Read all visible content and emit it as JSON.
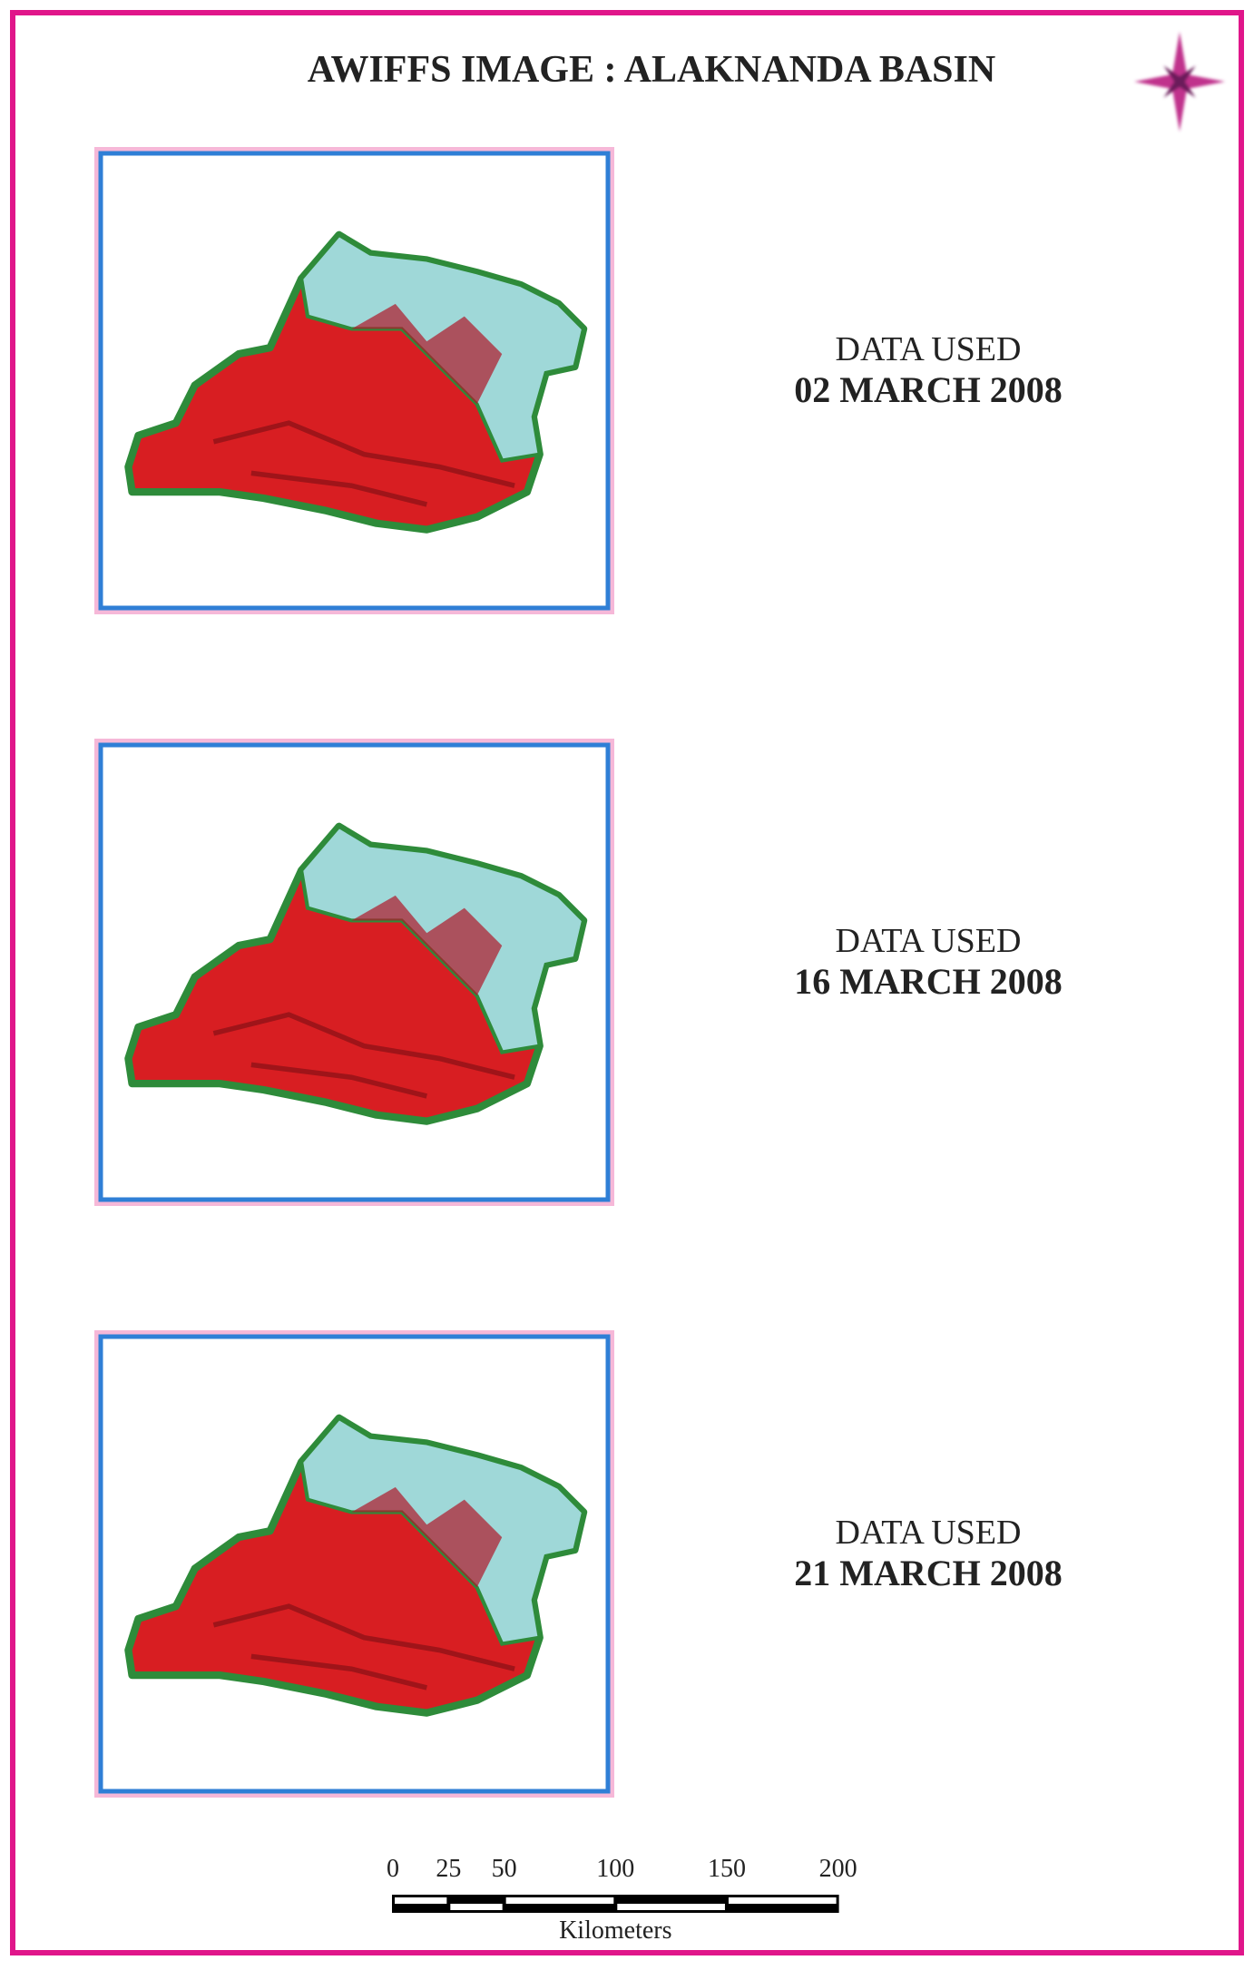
{
  "title": "AWIFFS IMAGE : ALAKNANDA BASIN",
  "panels": [
    {
      "label": "DATA USED",
      "date": "02 MARCH 2008"
    },
    {
      "label": "DATA USED",
      "date": "16 MARCH 2008"
    },
    {
      "label": "DATA USED",
      "date": "21 MARCH 2008"
    }
  ],
  "scale_bar": {
    "ticks": [
      0,
      25,
      50,
      100,
      150,
      200
    ],
    "unit": "Kilometers"
  }
}
